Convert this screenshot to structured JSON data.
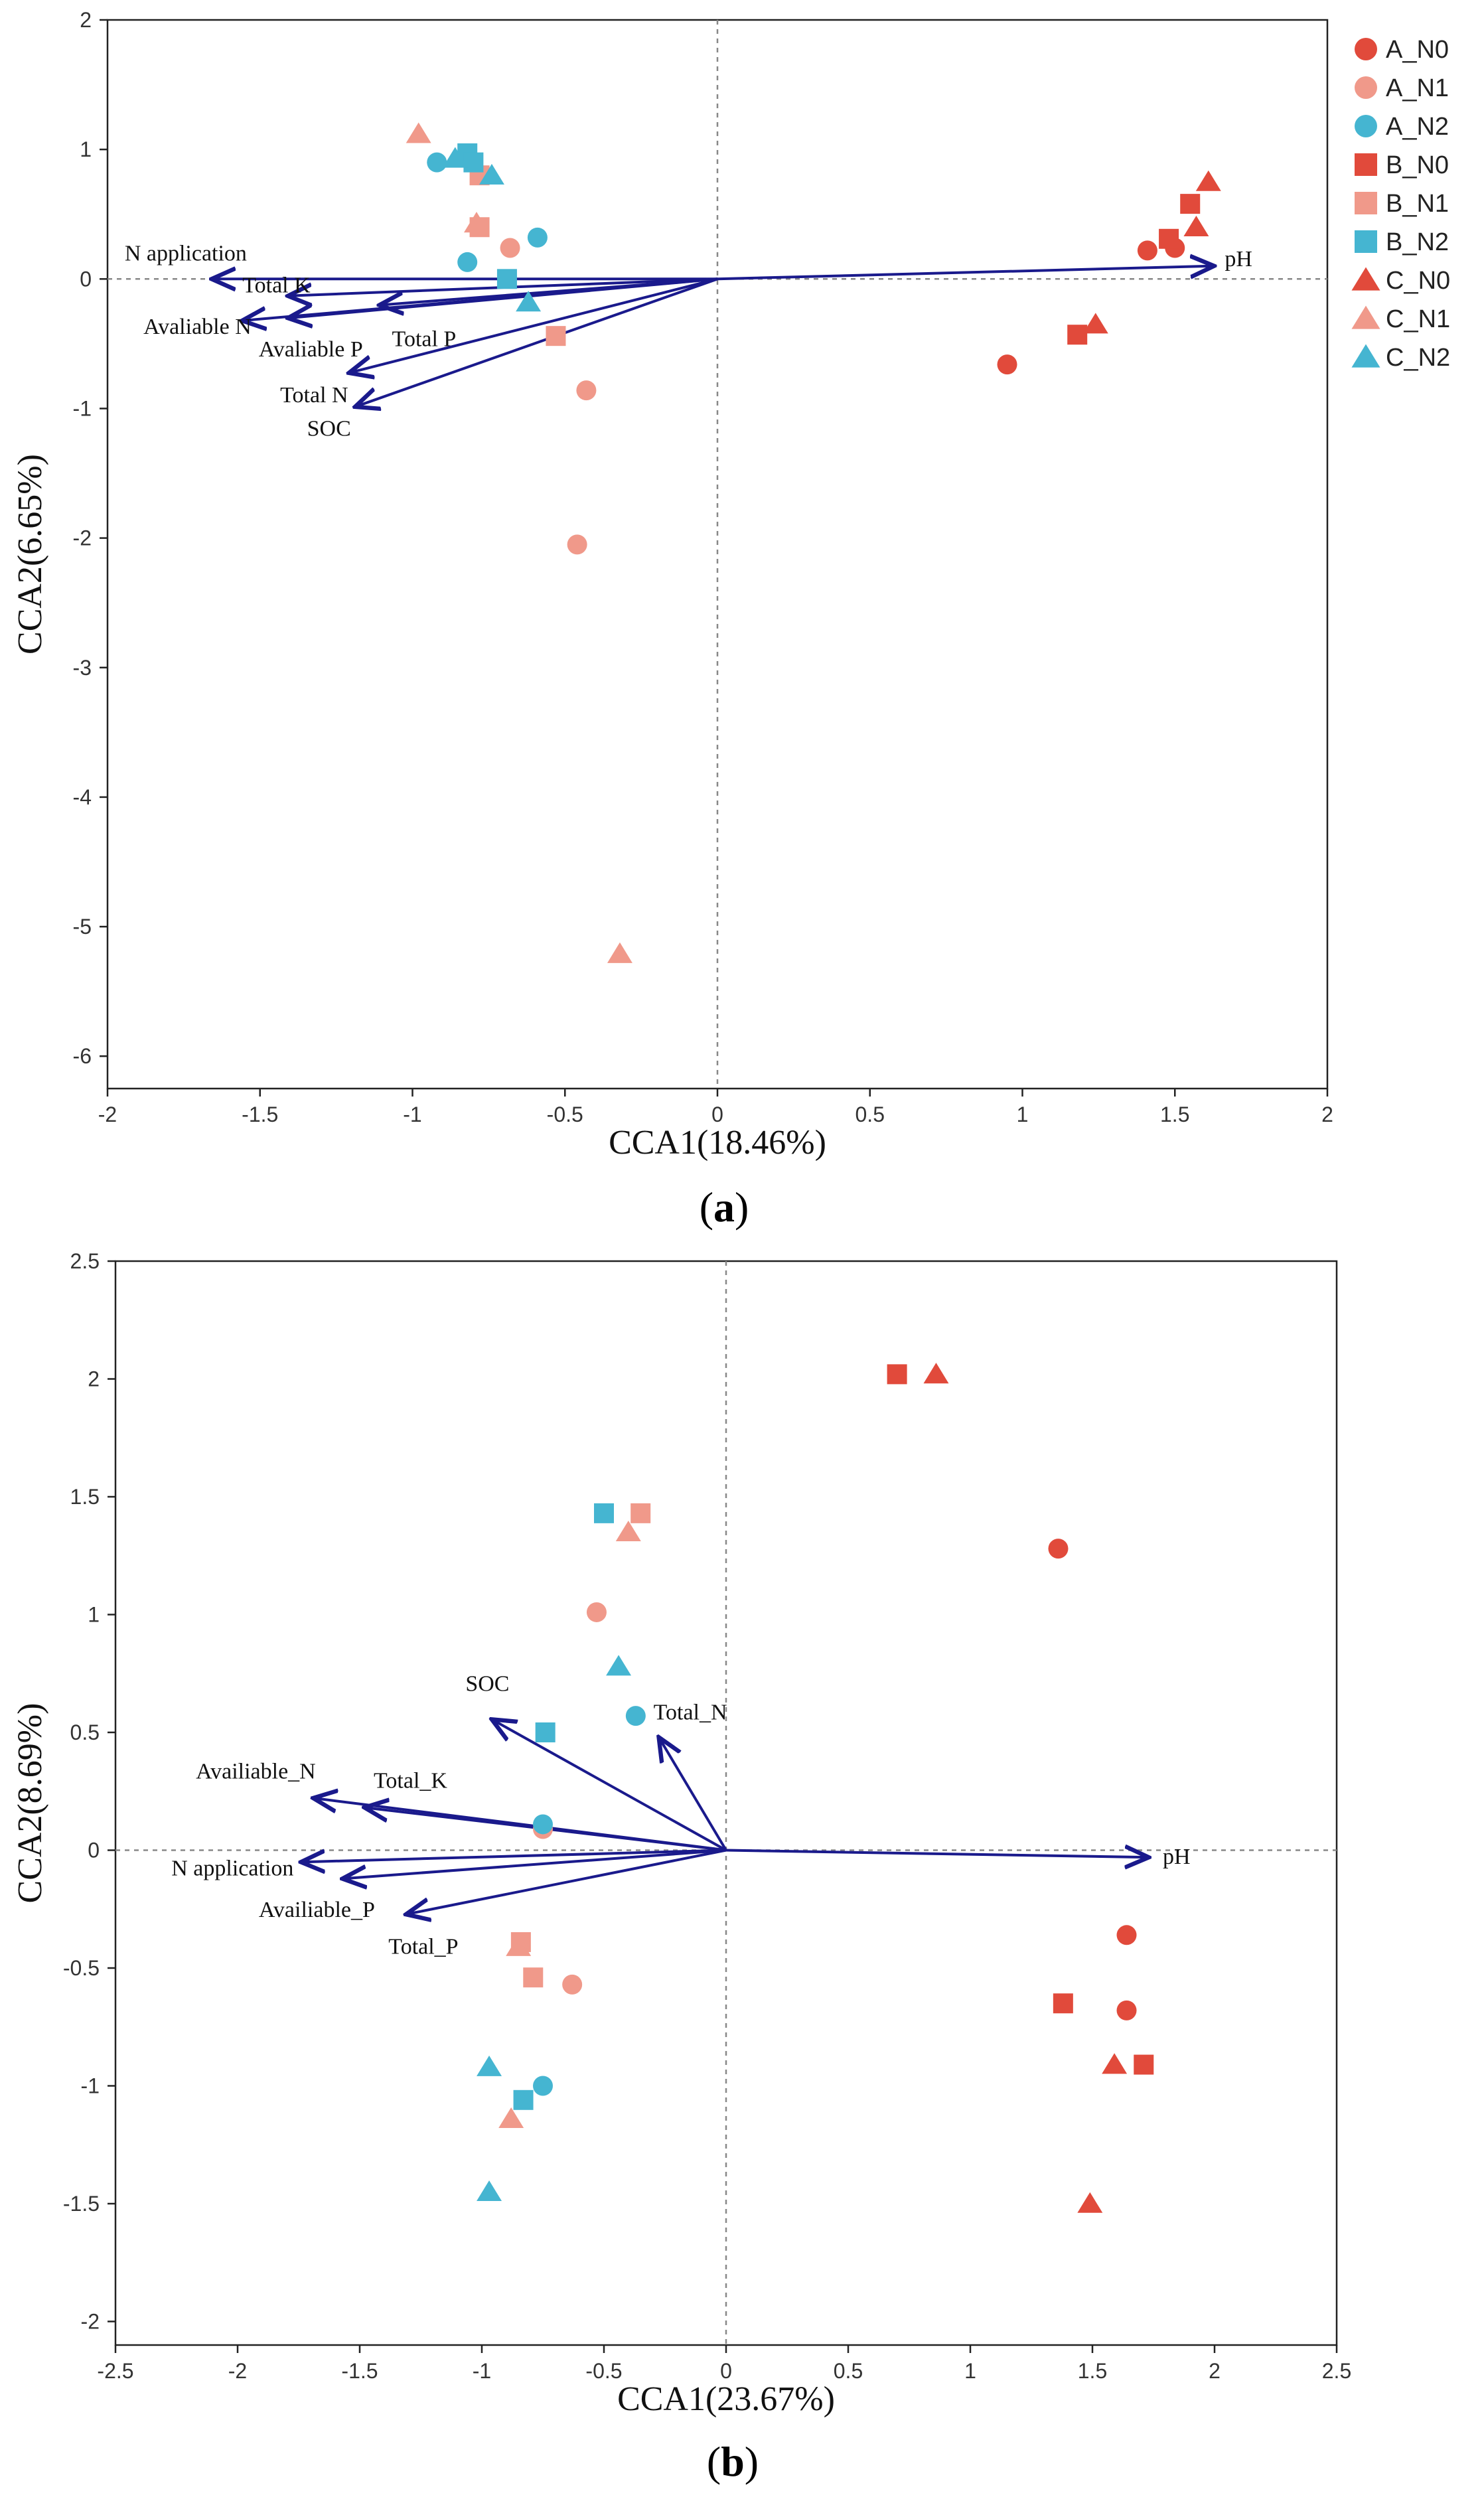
{
  "colors": {
    "N0": "#e14a3b",
    "N1": "#f0998a",
    "N2": "#45b5d1",
    "arrow": "#1a1a8c",
    "frame": "#222222",
    "dash": "#888888"
  },
  "legend": {
    "entries": [
      {
        "label": "A_N0",
        "shape": "circle",
        "group": "N0"
      },
      {
        "label": "A_N1",
        "shape": "circle",
        "group": "N1"
      },
      {
        "label": "A_N2",
        "shape": "circle",
        "group": "N2"
      },
      {
        "label": "B_N0",
        "shape": "square",
        "group": "N0"
      },
      {
        "label": "B_N1",
        "shape": "square",
        "group": "N1"
      },
      {
        "label": "B_N2",
        "shape": "square",
        "group": "N2"
      },
      {
        "label": "C_N0",
        "shape": "triangle",
        "group": "N0"
      },
      {
        "label": "C_N1",
        "shape": "triangle",
        "group": "N1"
      },
      {
        "label": "C_N2",
        "shape": "triangle",
        "group": "N2"
      }
    ]
  },
  "chart_data": [
    {
      "type": "scatter",
      "panel": "a",
      "panel_label": "a",
      "xlabel": "CCA1(18.46%)",
      "ylabel": "CCA2(6.65%)",
      "xlim": [
        -2,
        2
      ],
      "ylim": [
        -6.25,
        2
      ],
      "xticks": [
        -2,
        -1.5,
        -1,
        -0.5,
        0,
        0.5,
        1,
        1.5,
        2
      ],
      "xtick_labels": [
        "-2",
        "-1.5",
        "-1",
        "-0.5",
        "0",
        "0.5",
        "1",
        "1.5",
        "2"
      ],
      "yticks": [
        2,
        1,
        0,
        -1,
        -2,
        -3,
        -4,
        -5,
        -6
      ],
      "ytick_labels": [
        "2",
        "1",
        "0",
        "-1",
        "-2",
        "-3",
        "-4",
        "-5",
        "-6"
      ],
      "reference_lines": {
        "x": 0,
        "y": 0,
        "style": "dashed"
      },
      "arrows": [
        {
          "label": "N application",
          "x": -1.65,
          "y": 0.0
        },
        {
          "label": "Total K",
          "x": -1.4,
          "y": -0.13
        },
        {
          "label": "Avaliable N",
          "x": -1.55,
          "y": -0.32
        },
        {
          "label": "Avaliable P",
          "x": -1.4,
          "y": -0.3
        },
        {
          "label": "Total P",
          "x": -1.1,
          "y": -0.2
        },
        {
          "label": "Total N",
          "x": -1.2,
          "y": -0.72
        },
        {
          "label": "SOC",
          "x": -1.18,
          "y": -0.98
        },
        {
          "label": "pH",
          "x": 1.62,
          "y": 0.1
        }
      ],
      "series": [
        {
          "name": "A_N0",
          "points": [
            [
              0.95,
              -0.66
            ],
            [
              1.41,
              0.22
            ],
            [
              1.5,
              0.24
            ]
          ]
        },
        {
          "name": "A_N1",
          "points": [
            [
              -0.68,
              0.24
            ],
            [
              -0.43,
              -0.86
            ],
            [
              -0.46,
              -2.05
            ]
          ]
        },
        {
          "name": "A_N2",
          "points": [
            [
              -0.92,
              0.9
            ],
            [
              -0.82,
              0.13
            ],
            [
              -0.59,
              0.32
            ]
          ]
        },
        {
          "name": "B_N0",
          "points": [
            [
              1.48,
              0.31
            ],
            [
              1.55,
              0.58
            ],
            [
              1.18,
              -0.43
            ]
          ]
        },
        {
          "name": "B_N1",
          "points": [
            [
              -0.78,
              0.8
            ],
            [
              -0.78,
              0.4
            ],
            [
              -0.53,
              -0.44
            ]
          ]
        },
        {
          "name": "B_N2",
          "points": [
            [
              -0.82,
              0.97
            ],
            [
              -0.8,
              0.9
            ],
            [
              -0.69,
              0.0
            ]
          ]
        },
        {
          "name": "C_N0",
          "points": [
            [
              1.61,
              0.75
            ],
            [
              1.57,
              0.4
            ],
            [
              1.24,
              -0.35
            ]
          ]
        },
        {
          "name": "C_N1",
          "points": [
            [
              -0.98,
              1.12
            ],
            [
              -0.79,
              0.43
            ],
            [
              -0.32,
              -5.21
            ]
          ]
        },
        {
          "name": "C_N2",
          "points": [
            [
              -0.86,
              0.93
            ],
            [
              -0.74,
              0.8
            ],
            [
              -0.62,
              -0.18
            ]
          ]
        }
      ]
    },
    {
      "type": "scatter",
      "panel": "b",
      "panel_label": "b",
      "xlabel": "CCA1(23.67%)",
      "ylabel": "CCA2(8.69%)",
      "xlim": [
        -2.5,
        2.5
      ],
      "ylim": [
        -2.1,
        2.5
      ],
      "xticks": [
        -2.5,
        -2,
        -1.5,
        -1,
        -0.5,
        0,
        0.5,
        1,
        1.5,
        2,
        2.5
      ],
      "xtick_labels": [
        "-2.5",
        "-2",
        "-1.5",
        "-1",
        "-0.5",
        "0",
        "0.5",
        "1",
        "1.5",
        "2",
        "2.5"
      ],
      "yticks": [
        2.5,
        2,
        1.5,
        1,
        0.5,
        0,
        -0.5,
        -1,
        -1.5,
        -2
      ],
      "ytick_labels": [
        "2.5",
        "2",
        "1.5",
        "1",
        "0.5",
        "0",
        "-0.5",
        "-1",
        "-1.5",
        "-2"
      ],
      "reference_lines": {
        "x": 0,
        "y": 0,
        "style": "dashed"
      },
      "arrows": [
        {
          "label": "SOC",
          "x": -0.95,
          "y": 0.55
        },
        {
          "label": "Total_N",
          "x": -0.27,
          "y": 0.47
        },
        {
          "label": "Availiable_N",
          "x": -1.68,
          "y": 0.22
        },
        {
          "label": "Total_K",
          "x": -1.47,
          "y": 0.18
        },
        {
          "label": "N application",
          "x": -1.73,
          "y": -0.05
        },
        {
          "label": "Availiable_P",
          "x": -1.56,
          "y": -0.12
        },
        {
          "label": "Total_P",
          "x": -1.3,
          "y": -0.27
        },
        {
          "label": "pH",
          "x": 1.72,
          "y": -0.03
        }
      ],
      "series": [
        {
          "name": "A_N0",
          "points": [
            [
              1.36,
              1.28
            ],
            [
              1.64,
              -0.36
            ],
            [
              1.64,
              -0.68
            ]
          ]
        },
        {
          "name": "A_N1",
          "points": [
            [
              -0.53,
              1.01
            ],
            [
              -0.75,
              0.09
            ],
            [
              -0.63,
              -0.57
            ]
          ]
        },
        {
          "name": "A_N2",
          "points": [
            [
              -0.37,
              0.57
            ],
            [
              -0.75,
              0.11
            ],
            [
              -0.75,
              -1.0
            ]
          ]
        },
        {
          "name": "B_N0",
          "points": [
            [
              0.7,
              2.02
            ],
            [
              1.38,
              -0.65
            ],
            [
              1.71,
              -0.91
            ]
          ]
        },
        {
          "name": "B_N1",
          "points": [
            [
              -0.35,
              1.43
            ],
            [
              -0.84,
              -0.39
            ],
            [
              -0.79,
              -0.54
            ]
          ]
        },
        {
          "name": "B_N2",
          "points": [
            [
              -0.5,
              1.43
            ],
            [
              -0.74,
              0.5
            ],
            [
              -0.83,
              -1.06
            ]
          ]
        },
        {
          "name": "C_N0",
          "points": [
            [
              0.86,
              2.02
            ],
            [
              1.59,
              -0.91
            ],
            [
              1.49,
              -1.5
            ]
          ]
        },
        {
          "name": "C_N1",
          "points": [
            [
              -0.4,
              1.35
            ],
            [
              -0.85,
              -0.41
            ],
            [
              -0.88,
              -1.14
            ]
          ]
        },
        {
          "name": "C_N2",
          "points": [
            [
              -0.44,
              0.78
            ],
            [
              -0.97,
              -0.92
            ],
            [
              -0.97,
              -1.45
            ]
          ]
        }
      ]
    }
  ]
}
